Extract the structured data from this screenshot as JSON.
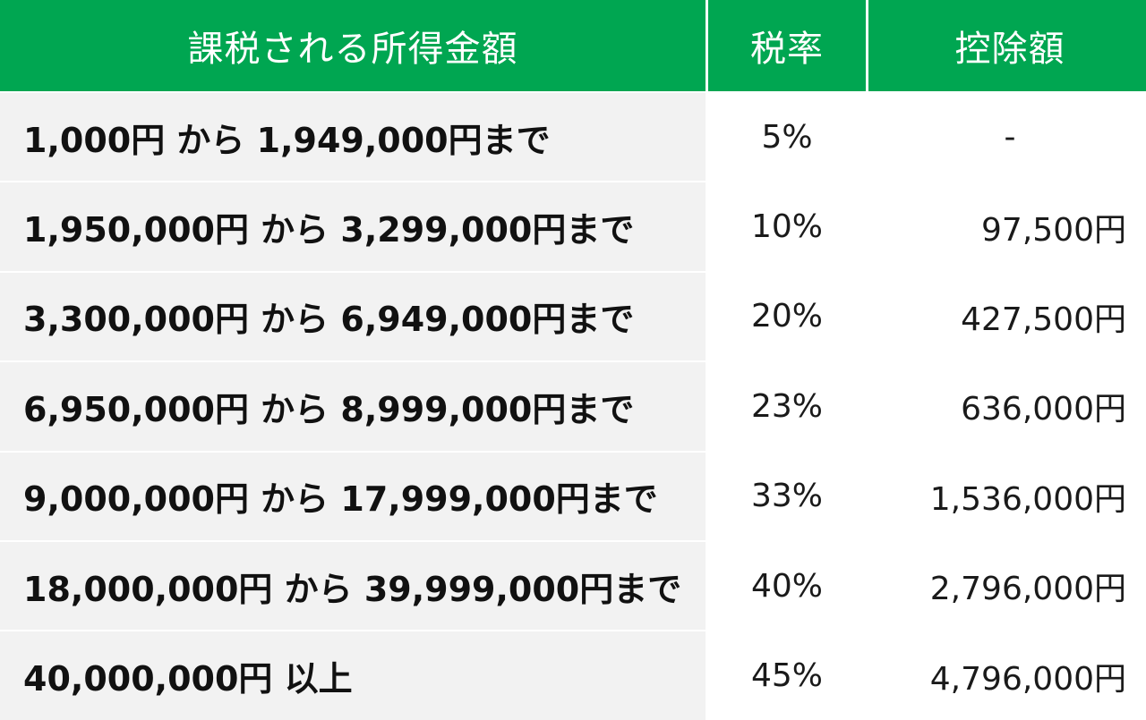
{
  "header": {
    "income": "課税される所得金額",
    "rate": "税率",
    "deduction": "控除額"
  },
  "rows": [
    {
      "range": "1,000円 から 1,949,000円まで",
      "rate": "5%",
      "deduction": "-"
    },
    {
      "range": "1,950,000円 から 3,299,000円まで",
      "rate": "10%",
      "deduction": "97,500円"
    },
    {
      "range": "3,300,000円 から 6,949,000円まで",
      "rate": "20%",
      "deduction": "427,500円"
    },
    {
      "range": "6,950,000円 から 8,999,000円まで",
      "rate": "23%",
      "deduction": "636,000円"
    },
    {
      "range": "9,000,000円 から 17,999,000円まで",
      "rate": "33%",
      "deduction": "1,536,000円"
    },
    {
      "range": "18,000,000円 から 39,999,000円まで",
      "rate": "40%",
      "deduction": "2,796,000円"
    },
    {
      "range": "40,000,000円 以上",
      "rate": "45%",
      "deduction": "4,796,000円"
    }
  ],
  "colors": {
    "header_bg": "#00a651",
    "header_text": "#ffffff",
    "range_bg": "#f2f2f2"
  }
}
